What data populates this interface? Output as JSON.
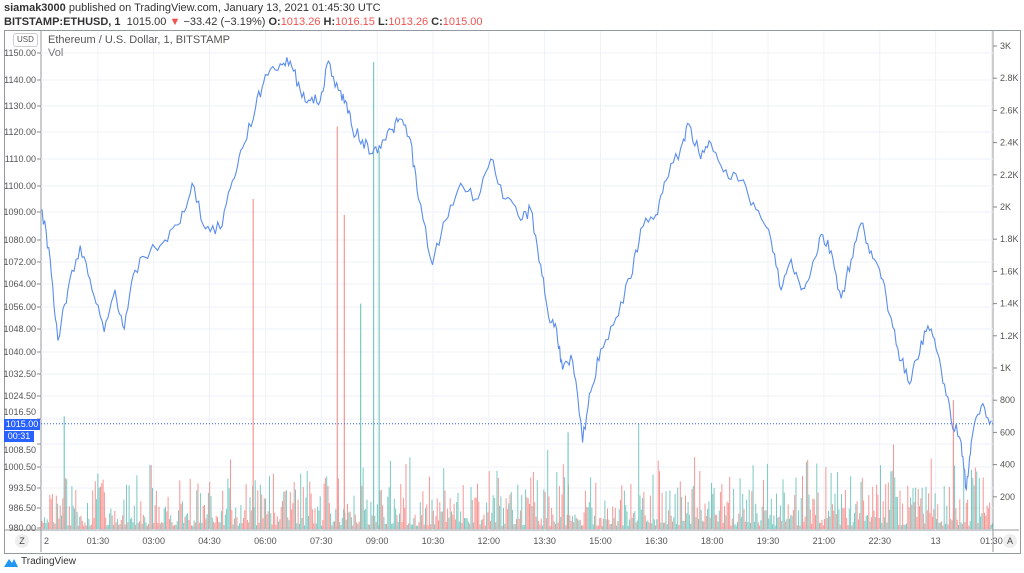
{
  "header": {
    "author": "siamak3000",
    "published": "published on TradingView.com, January 13, 2021 01:45:30 UTC",
    "symbol": "BITSTAMP:ETHUSD, 1",
    "last": "1015.00",
    "change": "−33.42 (−3.19%)",
    "o_label": "O:",
    "o": "1013.26",
    "h_label": "H:",
    "h": "1016.15",
    "l_label": "L:",
    "l": "1013.26",
    "c_label": "C:",
    "c": "1015.00"
  },
  "legend": {
    "title": "Ethereum / U.S. Dollar, 1, BITSTAMP",
    "vol": "Vol"
  },
  "currency": "USD",
  "price_tag": "1015.00",
  "countdown": "00:31",
  "buttons": {
    "z": "Z",
    "a": "A"
  },
  "brand": "TradingView",
  "colors": {
    "line": "#5b8def",
    "up": "#26a69a",
    "down": "#ef5350",
    "tag": "#2962ff"
  },
  "chart_data": {
    "type": "line",
    "title": "Ethereum / U.S. Dollar, 1, BITSTAMP",
    "left_ticks": [
      "1150.00",
      "1140.00",
      "1130.00",
      "1120.00",
      "1110.00",
      "1100.00",
      "1090.00",
      "1080.00",
      "1072.00",
      "1064.00",
      "1056.00",
      "1048.00",
      "1040.00",
      "1032.50",
      "1024.50",
      "1016.50",
      "1008.50",
      "1000.50",
      "993.50",
      "986.50",
      "980.00"
    ],
    "left_tick_values": [
      1150,
      1140,
      1130,
      1120,
      1110,
      1100,
      1090,
      1080,
      1072,
      1064,
      1056,
      1048,
      1040,
      1032.5,
      1024.5,
      1016.5,
      1008.5,
      1000.5,
      993.5,
      986.5,
      980
    ],
    "right_ticks": [
      "3K",
      "2.8K",
      "2.6K",
      "2.4K",
      "2.2K",
      "2K",
      "1.8K",
      "1.6K",
      "1.4K",
      "1.2K",
      "1K",
      "800",
      "600",
      "400",
      "200"
    ],
    "right_tick_values": [
      3000,
      2800,
      2600,
      2400,
      2200,
      2000,
      1800,
      1600,
      1400,
      1200,
      1000,
      800,
      600,
      400,
      200
    ],
    "x_ticks": [
      "2",
      "01:30",
      "03:00",
      "04:30",
      "06:00",
      "07:30",
      "09:00",
      "10:30",
      "12:00",
      "13:30",
      "15:00",
      "16:30",
      "18:00",
      "19:30",
      "21:00",
      "22:30",
      "13",
      "01:30"
    ],
    "x_unit": "hours since 00:00 Jan 12",
    "price_series": [
      [
        0,
        1091
      ],
      [
        0.22,
        1073
      ],
      [
        0.43,
        1044
      ],
      [
        0.7,
        1062
      ],
      [
        1.03,
        1078
      ],
      [
        1.35,
        1062
      ],
      [
        1.68,
        1047
      ],
      [
        1.97,
        1062
      ],
      [
        2.22,
        1048
      ],
      [
        2.51,
        1069
      ],
      [
        2.92,
        1076
      ],
      [
        3.32,
        1080
      ],
      [
        3.73,
        1086
      ],
      [
        4.05,
        1101
      ],
      [
        4.41,
        1084
      ],
      [
        4.81,
        1084
      ],
      [
        5.14,
        1102
      ],
      [
        5.41,
        1114
      ],
      [
        5.76,
        1129
      ],
      [
        6.03,
        1142
      ],
      [
        6.43,
        1146
      ],
      [
        6.7,
        1147
      ],
      [
        6.97,
        1136
      ],
      [
        7.24,
        1132
      ],
      [
        7.51,
        1132
      ],
      [
        7.73,
        1147
      ],
      [
        8.0,
        1136
      ],
      [
        8.19,
        1132
      ],
      [
        8.38,
        1121
      ],
      [
        8.65,
        1117
      ],
      [
        8.92,
        1112
      ],
      [
        9.19,
        1117
      ],
      [
        9.46,
        1121
      ],
      [
        9.68,
        1125
      ],
      [
        9.95,
        1117
      ],
      [
        10.16,
        1095
      ],
      [
        10.54,
        1071
      ],
      [
        10.89,
        1087
      ],
      [
        11.3,
        1101
      ],
      [
        11.7,
        1095
      ],
      [
        12.11,
        1110
      ],
      [
        12.51,
        1095
      ],
      [
        12.92,
        1087
      ],
      [
        13.19,
        1091
      ],
      [
        13.46,
        1071
      ],
      [
        13.68,
        1052
      ],
      [
        13.89,
        1048
      ],
      [
        14.05,
        1034
      ],
      [
        14.32,
        1037
      ],
      [
        14.59,
        1009
      ],
      [
        14.81,
        1026
      ],
      [
        15.08,
        1041
      ],
      [
        15.49,
        1052
      ],
      [
        15.89,
        1066
      ],
      [
        16.16,
        1084
      ],
      [
        16.57,
        1089
      ],
      [
        16.84,
        1102
      ],
      [
        17.24,
        1114
      ],
      [
        17.46,
        1123
      ],
      [
        17.78,
        1110
      ],
      [
        18.05,
        1116
      ],
      [
        18.46,
        1106
      ],
      [
        18.86,
        1102
      ],
      [
        19.27,
        1091
      ],
      [
        19.68,
        1080
      ],
      [
        19.95,
        1062
      ],
      [
        20.22,
        1073
      ],
      [
        20.49,
        1062
      ],
      [
        20.76,
        1069
      ],
      [
        21.03,
        1082
      ],
      [
        21.3,
        1076
      ],
      [
        21.57,
        1059
      ],
      [
        21.84,
        1073
      ],
      [
        22.11,
        1086
      ],
      [
        22.38,
        1076
      ],
      [
        22.65,
        1066
      ],
      [
        22.92,
        1052
      ],
      [
        23.19,
        1037
      ],
      [
        23.46,
        1030
      ],
      [
        23.73,
        1044
      ],
      [
        24.0,
        1048
      ],
      [
        24.27,
        1034
      ],
      [
        24.54,
        1016
      ],
      [
        24.81,
        1009
      ],
      [
        24.95,
        993
      ],
      [
        25.08,
        1009
      ],
      [
        25.35,
        1021
      ],
      [
        25.62,
        1016
      ]
    ],
    "volume_spikes": [
      [
        5.7,
        2050,
        "down"
      ],
      [
        7.97,
        2500,
        "down"
      ],
      [
        8.16,
        1950,
        "down"
      ],
      [
        8.6,
        1400,
        "up"
      ],
      [
        8.95,
        2900,
        "up"
      ],
      [
        9.1,
        2350,
        "up"
      ],
      [
        0.6,
        700,
        "up"
      ],
      [
        14.2,
        600,
        "up"
      ],
      [
        24.6,
        800,
        "down"
      ]
    ],
    "last_price": 1015.0
  }
}
